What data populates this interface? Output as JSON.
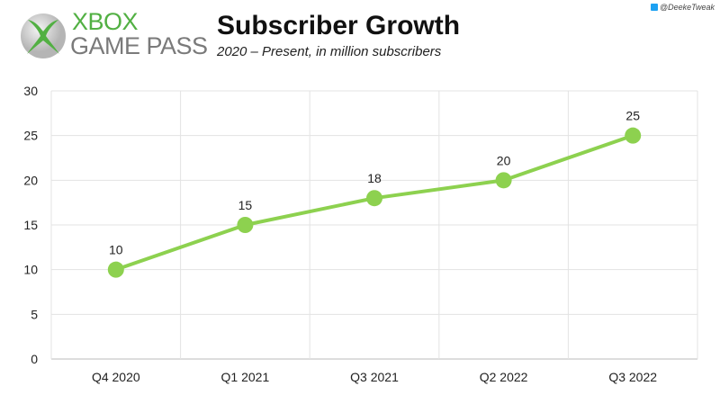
{
  "header": {
    "brand_line1": "XBOX",
    "brand_line2": "GAME PASS",
    "title": "Subscriber Growth",
    "subtitle": "2020 – Present, in million subscribers",
    "credit": "@DeekeTweak"
  },
  "colors": {
    "line": "#8dd14f",
    "brand_green": "#52b043",
    "grid": "#e3e3e3"
  },
  "chart_data": {
    "type": "line",
    "title": "Subscriber Growth",
    "subtitle": "2020 – Present, in million subscribers",
    "categories": [
      "Q4 2020",
      "Q1 2021",
      "Q3 2021",
      "Q2 2022",
      "Q3 2022"
    ],
    "values": [
      10,
      15,
      18,
      20,
      25
    ],
    "data_labels": [
      "10",
      "15",
      "18",
      "20",
      "25"
    ],
    "yticks": [
      "0",
      "5",
      "10",
      "15",
      "20",
      "25",
      "30"
    ],
    "ylim": [
      0,
      30
    ],
    "grid": true,
    "legend": "none"
  }
}
